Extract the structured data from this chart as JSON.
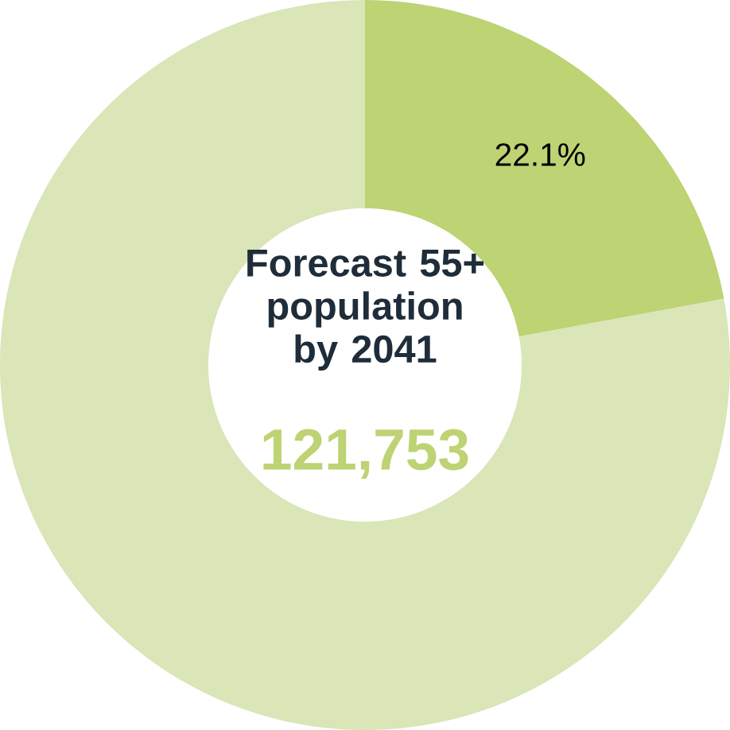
{
  "chart_data": {
    "type": "donut",
    "title": "Forecast 55+ population by 2041",
    "categories": [
      null,
      null
    ],
    "values": [
      22.1,
      77.9
    ],
    "colors": [
      "#bdd374",
      "#dae5b8"
    ],
    "value_labels": [
      "22.1%",
      null
    ],
    "annotations": [
      "121,753"
    ]
  }
}
